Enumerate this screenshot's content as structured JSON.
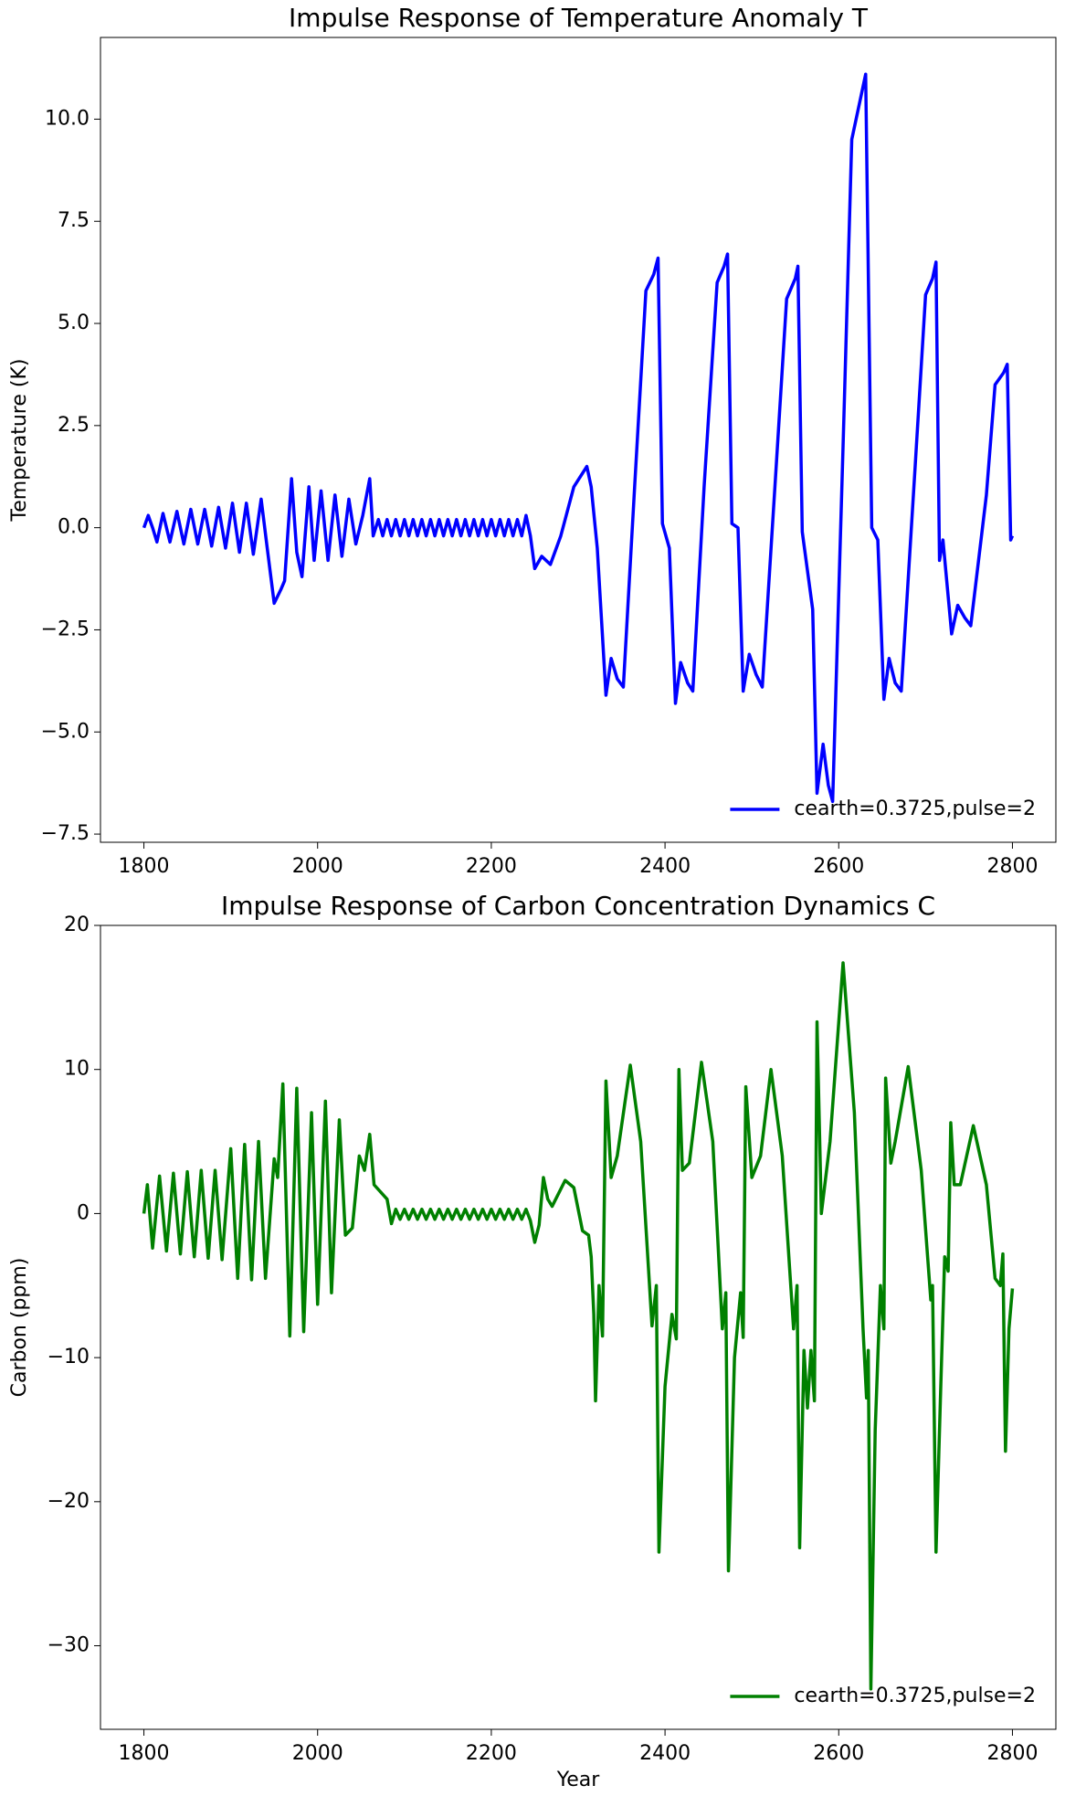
{
  "chart_data": [
    {
      "type": "line",
      "title": "Impulse Response of Temperature Anomaly T",
      "ylabel": "Temperature (K)",
      "x": [
        1800,
        1805,
        1810,
        1815,
        1822,
        1830,
        1838,
        1846,
        1854,
        1862,
        1870,
        1878,
        1886,
        1894,
        1902,
        1910,
        1918,
        1926,
        1935,
        1942,
        1950,
        1958,
        1962,
        1970,
        1976,
        1982,
        1990,
        1996,
        2004,
        2012,
        2020,
        2028,
        2036,
        2044,
        2052,
        2060,
        2064,
        2070,
        2075,
        2080,
        2085,
        2090,
        2095,
        2100,
        2105,
        2110,
        2115,
        2120,
        2125,
        2130,
        2135,
        2140,
        2145,
        2150,
        2155,
        2160,
        2165,
        2170,
        2175,
        2180,
        2185,
        2190,
        2195,
        2200,
        2205,
        2210,
        2215,
        2220,
        2225,
        2230,
        2235,
        2240,
        2245,
        2250,
        2258,
        2268,
        2280,
        2295,
        2310,
        2315,
        2322,
        2332,
        2338,
        2345,
        2352,
        2365,
        2378,
        2387,
        2392,
        2397,
        2405,
        2412,
        2418,
        2426,
        2432,
        2445,
        2460,
        2468,
        2472,
        2477,
        2484,
        2490,
        2497,
        2505,
        2512,
        2528,
        2540,
        2550,
        2553,
        2558,
        2570,
        2575,
        2582,
        2588,
        2593,
        2605,
        2615,
        2625,
        2631,
        2638,
        2645,
        2652,
        2658,
        2665,
        2672,
        2688,
        2700,
        2708,
        2712,
        2716,
        2720,
        2730,
        2737,
        2745,
        2752,
        2770,
        2780,
        2790,
        2794,
        2798,
        2800
      ],
      "series": [
        {
          "name": "cearth=0.3725,pulse=2",
          "color": "#0000ff",
          "values": [
            0,
            0.3,
            0,
            -0.35,
            0.35,
            -0.35,
            0.4,
            -0.4,
            0.45,
            -0.4,
            0.45,
            -0.45,
            0.5,
            -0.5,
            0.6,
            -0.6,
            0.6,
            -0.65,
            0.7,
            -0.5,
            -1.85,
            -1.5,
            -1.3,
            1.2,
            -0.6,
            -1.2,
            1.0,
            -0.8,
            0.9,
            -0.8,
            0.8,
            -0.7,
            0.7,
            -0.4,
            0.3,
            1.2,
            -0.2,
            0.2,
            -0.2,
            0.2,
            -0.2,
            0.2,
            -0.2,
            0.2,
            -0.2,
            0.2,
            -0.2,
            0.2,
            -0.2,
            0.2,
            -0.2,
            0.2,
            -0.2,
            0.2,
            -0.2,
            0.2,
            -0.2,
            0.2,
            -0.2,
            0.2,
            -0.2,
            0.2,
            -0.2,
            0.2,
            -0.2,
            0.2,
            -0.2,
            0.2,
            -0.2,
            0.2,
            -0.2,
            0.3,
            -0.2,
            -1.0,
            -0.7,
            -0.9,
            -0.2,
            1.0,
            1.5,
            1.0,
            -0.5,
            -4.1,
            -3.2,
            -3.7,
            -3.9,
            1.0,
            5.8,
            6.2,
            6.6,
            0.1,
            -0.5,
            -4.3,
            -3.3,
            -3.8,
            -4.0,
            1.0,
            6.0,
            6.4,
            6.7,
            0.1,
            0,
            -4.0,
            -3.1,
            -3.6,
            -3.9,
            1.5,
            5.6,
            6.1,
            6.4,
            -0.1,
            -2.0,
            -6.5,
            -5.3,
            -6.3,
            -6.7,
            2.0,
            9.5,
            10.5,
            11.1,
            0,
            -0.3,
            -4.2,
            -3.2,
            -3.8,
            -4.0,
            1.5,
            5.7,
            6.1,
            6.5,
            -0.8,
            -0.3,
            -2.6,
            -1.9,
            -2.2,
            -2.4,
            0.8,
            3.5,
            3.8,
            4.0,
            -0.3,
            -0.2
          ]
        }
      ],
      "xlim": [
        1750,
        2850
      ],
      "ylim": [
        -7.7,
        12.0
      ],
      "xticks": [
        1800,
        2000,
        2200,
        2400,
        2600,
        2800
      ],
      "yticks": [
        {
          "value": -7.5,
          "label": "−7.5"
        },
        {
          "value": -5,
          "label": "−5.0"
        },
        {
          "value": -2.5,
          "label": "−2.5"
        },
        {
          "value": 0,
          "label": "0.0"
        },
        {
          "value": 2.5,
          "label": "2.5"
        },
        {
          "value": 5,
          "label": "5.0"
        },
        {
          "value": 7.5,
          "label": "7.5"
        },
        {
          "value": 10,
          "label": "10.0"
        }
      ],
      "legend": "lower right"
    },
    {
      "type": "line",
      "title": "Impulse Response of Carbon Concentration Dynamics C",
      "ylabel": "Carbon (ppm)",
      "xlabel": "Year",
      "x": [
        1800,
        1804,
        1810,
        1818,
        1826,
        1834,
        1842,
        1850,
        1858,
        1866,
        1874,
        1882,
        1890,
        1900,
        1908,
        1916,
        1924,
        1932,
        1940,
        1950,
        1954,
        1960,
        1968,
        1976,
        1984,
        1993,
        2000,
        2009,
        2016,
        2025,
        2032,
        2040,
        2048,
        2054,
        2060,
        2065,
        2080,
        2085,
        2090,
        2095,
        2100,
        2105,
        2110,
        2115,
        2120,
        2125,
        2130,
        2135,
        2140,
        2145,
        2150,
        2155,
        2160,
        2165,
        2170,
        2175,
        2180,
        2185,
        2190,
        2195,
        2200,
        2205,
        2210,
        2215,
        2220,
        2225,
        2230,
        2235,
        2240,
        2245,
        2250,
        2255,
        2260,
        2265,
        2270,
        2285,
        2295,
        2305,
        2312,
        2315,
        2318,
        2320,
        2324,
        2328,
        2332,
        2338,
        2345,
        2360,
        2372,
        2385,
        2390,
        2393,
        2400,
        2408,
        2413,
        2416,
        2420,
        2428,
        2442,
        2455,
        2466,
        2470,
        2473,
        2480,
        2487,
        2490,
        2493,
        2500,
        2510,
        2522,
        2535,
        2548,
        2552,
        2555,
        2560,
        2564,
        2568,
        2572,
        2575,
        2580,
        2590,
        2605,
        2618,
        2628,
        2632,
        2634,
        2637,
        2642,
        2648,
        2652,
        2654,
        2660,
        2665,
        2680,
        2695,
        2706,
        2708,
        2712,
        2717,
        2722,
        2726,
        2729,
        2733,
        2740,
        2755,
        2770,
        2780,
        2786,
        2789,
        2792,
        2796,
        2800
      ],
      "series": [
        {
          "name": "cearth=0.3725,pulse=2",
          "color": "#008000",
          "values": [
            0,
            2.0,
            -2.4,
            2.6,
            -2.6,
            2.8,
            -2.8,
            2.9,
            -3.0,
            3.0,
            -3.1,
            3.0,
            -3.2,
            4.5,
            -4.5,
            4.8,
            -4.6,
            5.0,
            -4.5,
            3.8,
            2.5,
            9.0,
            -8.5,
            8.7,
            -8.2,
            7.0,
            -6.3,
            7.8,
            -5.5,
            6.5,
            -1.5,
            -1.0,
            4.0,
            3.0,
            5.5,
            2.0,
            1.0,
            -0.7,
            0.3,
            -0.4,
            0.3,
            -0.4,
            0.3,
            -0.4,
            0.3,
            -0.4,
            0.3,
            -0.4,
            0.3,
            -0.4,
            0.3,
            -0.4,
            0.3,
            -0.4,
            0.3,
            -0.4,
            0.3,
            -0.4,
            0.3,
            -0.4,
            0.3,
            -0.4,
            0.3,
            -0.4,
            0.3,
            -0.4,
            0.3,
            -0.4,
            0.3,
            -0.5,
            -2.0,
            -0.8,
            2.5,
            1.0,
            0.5,
            2.3,
            1.8,
            -1.2,
            -1.5,
            -3,
            -7,
            -13,
            -5,
            -8.5,
            9.2,
            2.5,
            4.0,
            10.3,
            5.0,
            -7.8,
            -5.0,
            -23.5,
            -12,
            -7,
            -8.7,
            10.0,
            3.0,
            3.5,
            10.5,
            5.0,
            -8.0,
            -5.5,
            -24.8,
            -10.0,
            -5.5,
            -8.6,
            8.8,
            2.5,
            4.0,
            10.0,
            4.0,
            -8.0,
            -5.0,
            -23.2,
            -9.5,
            -13.5,
            -9.5,
            -13.0,
            13.3,
            0,
            5.0,
            17.4,
            7.0,
            -8.0,
            -12.8,
            -9.5,
            -33.0,
            -15,
            -5.0,
            -8.0,
            9.4,
            3.5,
            5.0,
            10.2,
            3.0,
            -6.0,
            -5.0,
            -23.5,
            -13,
            -3.0,
            -4,
            6.3,
            2.0,
            2.0,
            6.1,
            2.0,
            -4.5,
            -5.0,
            -2.8,
            -16.5,
            -8.0,
            -5.2
          ]
        }
      ],
      "xlim": [
        1750,
        2850
      ],
      "ylim": [
        -35.8,
        20
      ],
      "xticks": [
        1800,
        2000,
        2200,
        2400,
        2600,
        2800
      ],
      "yticks": [
        {
          "value": -30,
          "label": "−30"
        },
        {
          "value": -20,
          "label": "−20"
        },
        {
          "value": -10,
          "label": "−10"
        },
        0,
        10,
        20
      ],
      "legend": "lower right"
    }
  ]
}
